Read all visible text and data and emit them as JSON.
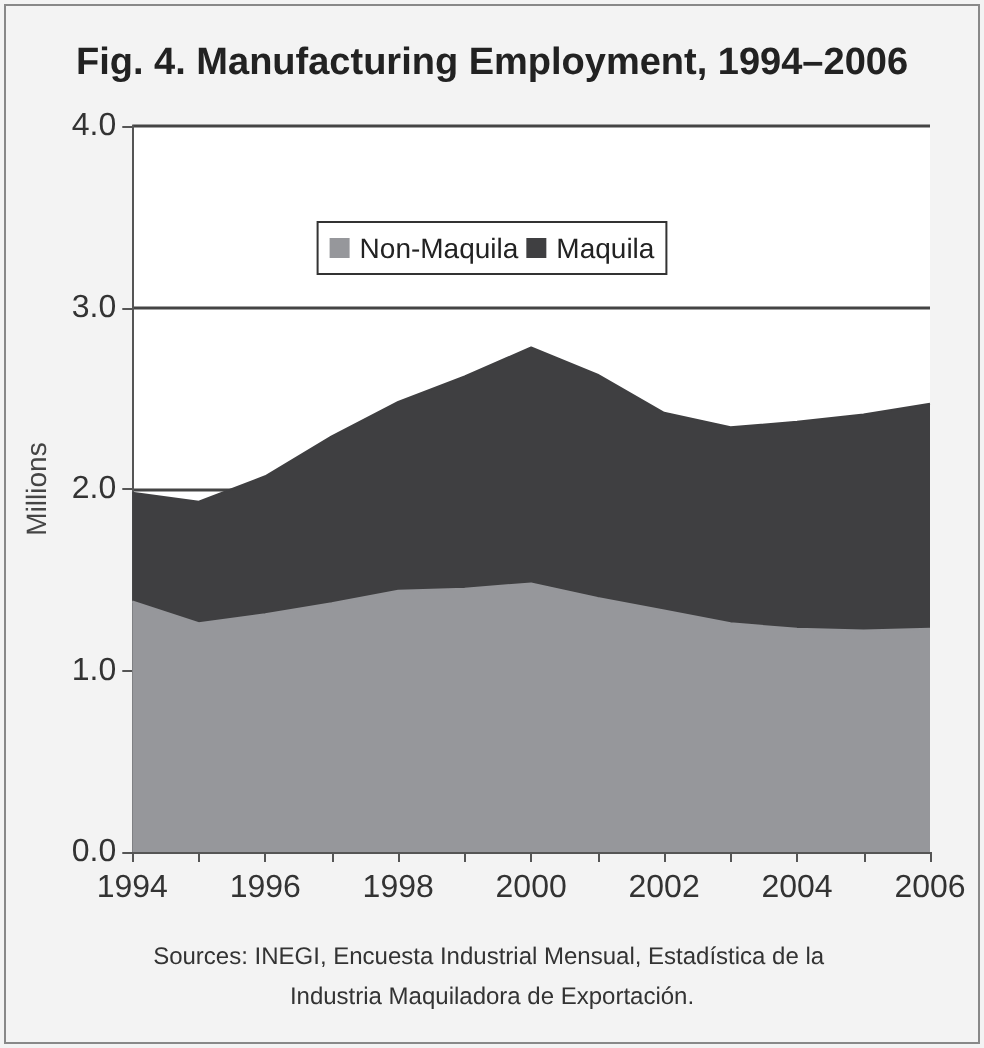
{
  "chart_data": {
    "type": "area",
    "title": "Fig. 4. Manufacturing Employment, 1994–2006",
    "ylabel": "Millions",
    "stacked": true,
    "grid": "y",
    "legend": "top",
    "marker": "none",
    "x": [
      1994,
      1995,
      1996,
      1997,
      1998,
      1999,
      2000,
      2001,
      2002,
      2003,
      2004,
      2005,
      2006
    ],
    "series": [
      {
        "name": "Non-Maquila",
        "color": "#96979b",
        "values": [
          1.38,
          1.26,
          1.31,
          1.37,
          1.44,
          1.45,
          1.48,
          1.4,
          1.33,
          1.26,
          1.23,
          1.22,
          1.23
        ]
      },
      {
        "name": "Maquila",
        "color": "#3f3f41",
        "values": [
          0.6,
          0.67,
          0.76,
          0.92,
          1.04,
          1.17,
          1.3,
          1.23,
          1.09,
          1.08,
          1.14,
          1.19,
          1.24
        ]
      }
    ],
    "xlim": [
      1994,
      2006
    ],
    "xticks": [
      1994,
      {
        "value": 1995,
        "label": null
      },
      1996,
      {
        "value": 1997,
        "label": null
      },
      1998,
      {
        "value": 1999,
        "label": null
      },
      2000,
      {
        "value": 2001,
        "label": null
      },
      2002,
      {
        "value": 2003,
        "label": null
      },
      2004,
      {
        "value": 2005,
        "label": null
      },
      2006
    ],
    "ylim": [
      0,
      4
    ],
    "yticks": [
      {
        "value": 0,
        "label": "0.0"
      },
      {
        "value": 1,
        "label": "1.0"
      },
      {
        "value": 2,
        "label": "2.0"
      },
      {
        "value": 3,
        "label": "3.0"
      },
      {
        "value": 4,
        "label": "4.0"
      }
    ],
    "annotations": [
      "Sources: INEGI, Encuesta Industrial Mensual, Estadística de la Industria Maquiladora de Exportación."
    ]
  }
}
